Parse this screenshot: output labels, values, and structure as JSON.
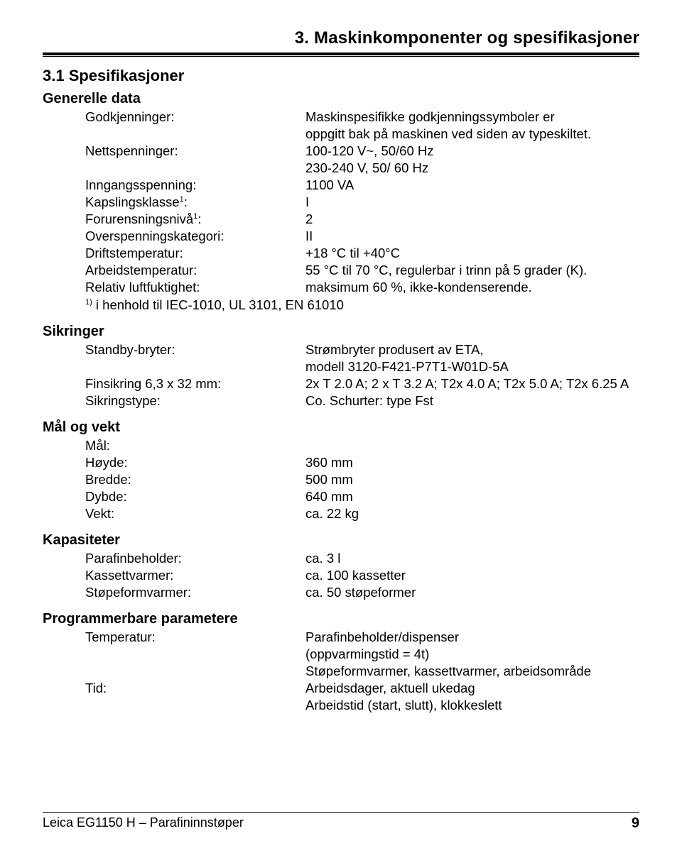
{
  "chapter": "3.   Maskinkomponenter og spesifikasjoner",
  "section": "3.1  Spesifikasjoner",
  "groups": {
    "general": {
      "title": "Generelle data",
      "rows": {
        "approvals": {
          "label": "Godkjenninger:",
          "value": "Maskinspesifikke godkjenningssymboler er"
        },
        "approvals2": {
          "label": "",
          "value": "oppgitt bak på maskinen ved siden av typeskiltet."
        },
        "mains": {
          "label": "Nettspenninger:",
          "value": "100-120 V~, 50/60 Hz"
        },
        "mains2": {
          "label": "",
          "value": "230-240 V, 50/ 60 Hz"
        },
        "input": {
          "label": "Inngangsspenning:",
          "value": "1100 VA"
        },
        "encl": {
          "label_html": "Kapslingsklasse<sup>1</sup>:",
          "value": "I"
        },
        "pollution": {
          "label_html": "Forurensningsnivå<sup>1</sup>:",
          "value": "2"
        },
        "overvolt": {
          "label": "Overspenningskategori:",
          "value": "II"
        },
        "optemp": {
          "label": "Driftstemperatur:",
          "value": "+18 °C til +40°C"
        },
        "worktemp": {
          "label": "Arbeidstemperatur:",
          "value": "55 °C til 70 °C, regulerbar i trinn på 5 grader (K)."
        },
        "humidity": {
          "label": "Relativ luftfuktighet:",
          "value": "maksimum 60 %, ikke-kondenserende."
        }
      },
      "footnote_html": "<sup>1)</sup> i henhold til IEC-1010, UL 3101, EN 61010"
    },
    "fuses": {
      "title": "Sikringer",
      "rows": {
        "standby": {
          "label": "Standby-bryter:",
          "value": "Strømbryter produsert av ETA,"
        },
        "standby2": {
          "label": "",
          "value": "modell 3120-F421-P7T1-W01D-5A"
        },
        "fine": {
          "label": "Finsikring 6,3 x 32 mm:",
          "value": "2x T 2.0 A; 2 x  T 3.2 A; T2x 4.0 A; T2x 5.0 A; T2x 6.25 A"
        },
        "type": {
          "label": "Sikringstype:",
          "value": "Co. Schurter: type Fst"
        }
      }
    },
    "dims": {
      "title": "Mål og vekt",
      "rows": {
        "dims": {
          "label": "Mål:",
          "value": ""
        },
        "h": {
          "label": "Høyde:",
          "value": "360 mm"
        },
        "w": {
          "label": "Bredde:",
          "value": "500 mm"
        },
        "d": {
          "label": "Dybde:",
          "value": "640 mm"
        },
        "wt": {
          "label": "Vekt:",
          "value": "ca. 22 kg"
        }
      }
    },
    "cap": {
      "title": "Kapasiteter",
      "rows": {
        "paraffin": {
          "label": "Parafinbeholder:",
          "value": "ca. 3 l"
        },
        "cassette": {
          "label": "Kassettvarmer:",
          "value": "ca. 100 kassetter"
        },
        "mold": {
          "label": "Støpeformvarmer:",
          "value": "ca. 50 støpeformer"
        }
      }
    },
    "prog": {
      "title": "Programmerbare parametere",
      "rows": {
        "temp": {
          "label": "Temperatur:",
          "value": "Parafinbeholder/dispenser"
        },
        "temp2": {
          "label": "",
          "value": "(oppvarmingstid = 4t)"
        },
        "temp3": {
          "label": "",
          "value": "Støpeformvarmer, kassettvarmer, arbeidsområde"
        },
        "time": {
          "label": "Tid:",
          "value": "Arbeidsdager, aktuell ukedag"
        },
        "time2": {
          "label": "",
          "value": "Arbeidstid (start, slutt), klokkeslett"
        }
      }
    }
  },
  "footer": {
    "left": "Leica EG1150 H – Parafininnstøper",
    "page": "9"
  }
}
